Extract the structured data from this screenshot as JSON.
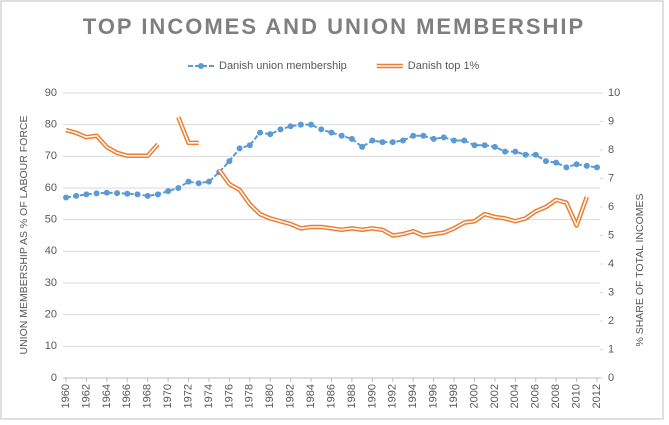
{
  "chart_data": {
    "type": "line",
    "title": "TOP INCOMES AND UNION MEMBERSHIP",
    "y_label": "UNION MEMBERSHIP AS % OF LABOUR FORCE",
    "y2_label": "% SHARE OF TOTAL INCOMES",
    "x": [
      1960,
      1961,
      1962,
      1963,
      1964,
      1965,
      1966,
      1967,
      1968,
      1969,
      1970,
      1971,
      1972,
      1973,
      1974,
      1975,
      1976,
      1977,
      1978,
      1979,
      1980,
      1981,
      1982,
      1983,
      1984,
      1985,
      1986,
      1987,
      1988,
      1989,
      1990,
      1991,
      1992,
      1993,
      1994,
      1995,
      1996,
      1997,
      1998,
      1999,
      2000,
      2001,
      2002,
      2003,
      2004,
      2005,
      2006,
      2007,
      2008,
      2009,
      2010,
      2011,
      2012
    ],
    "xlim": [
      1960,
      2012
    ],
    "xticks": [
      1960,
      1962,
      1964,
      1966,
      1968,
      1970,
      1972,
      1974,
      1976,
      1978,
      1980,
      1982,
      1984,
      1986,
      1988,
      1990,
      1992,
      1994,
      1996,
      1998,
      2000,
      2002,
      2004,
      2006,
      2008,
      2010,
      2012
    ],
    "ylim": [
      0,
      90
    ],
    "yticks": [
      0,
      10,
      20,
      30,
      40,
      50,
      60,
      70,
      80,
      90
    ],
    "y2lim": [
      0,
      10
    ],
    "y2ticks": [
      0,
      1,
      2,
      3,
      4,
      5,
      6,
      7,
      8,
      9,
      10
    ],
    "grid": true,
    "legend": "top",
    "series": [
      {
        "name": "Danish union membership",
        "color": "#5b9bd5",
        "axis": "y",
        "values": [
          57,
          57.5,
          58,
          58.3,
          58.5,
          58.4,
          58.2,
          58,
          57.5,
          58,
          59,
          60,
          62,
          61.5,
          62,
          65,
          68.5,
          72.5,
          73.5,
          77.5,
          77,
          78.5,
          79.5,
          80,
          80,
          78.5,
          77.5,
          76.5,
          75.5,
          73,
          75,
          74.5,
          74.5,
          75,
          76.5,
          76.5,
          75.5,
          76,
          75,
          75,
          73.5,
          73.5,
          73,
          71.5,
          71.5,
          70.5,
          70.5,
          68.5,
          68,
          66.5,
          67.5,
          67,
          66.5
        ]
      },
      {
        "name": "Danish top 1%",
        "color": "#ed7d31",
        "axis": "y2",
        "values": [
          8.7,
          8.6,
          8.45,
          8.5,
          8.1,
          7.9,
          7.8,
          7.8,
          7.8,
          8.2,
          null,
          9.15,
          8.25,
          8.25,
          null,
          7.3,
          6.8,
          6.6,
          6.1,
          5.75,
          5.6,
          5.5,
          5.4,
          5.25,
          5.3,
          5.3,
          5.25,
          5.2,
          5.25,
          5.2,
          5.25,
          5.2,
          5.0,
          5.05,
          5.15,
          5.0,
          5.05,
          5.1,
          5.25,
          5.45,
          5.5,
          5.75,
          5.65,
          5.6,
          5.5,
          5.6,
          5.85,
          6.0,
          6.25,
          6.15,
          5.35,
          6.35,
          null
        ]
      }
    ]
  }
}
